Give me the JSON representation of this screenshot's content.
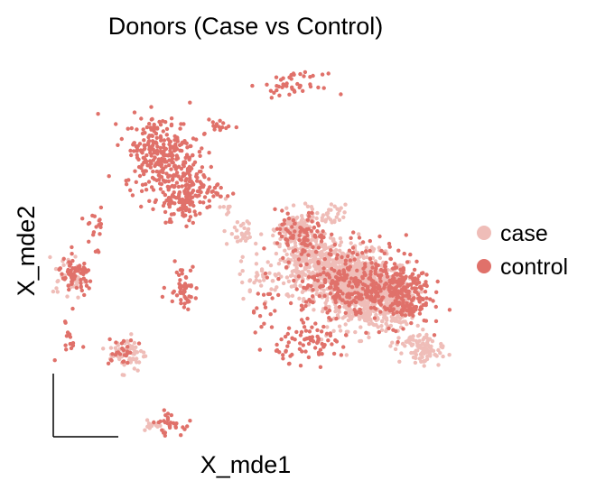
{
  "chart_data": {
    "type": "scatter",
    "title": "Donors (Case vs Control)",
    "xlabel": "X_mde1",
    "ylabel": "X_mde2",
    "ticks": "none",
    "grid": false,
    "legend_position": "right",
    "colors": {
      "case": "#efbdb8",
      "control": "#e0716a"
    },
    "series": [
      {
        "name": "case",
        "clusters": [
          {
            "center": [
              1.02,
              0.47
            ],
            "spread": [
              0.11,
              0.1
            ],
            "n": 520
          },
          {
            "center": [
              0.86,
              0.56
            ],
            "spread": [
              0.11,
              0.08
            ],
            "n": 420
          },
          {
            "center": [
              0.72,
              0.66
            ],
            "spread": [
              0.1,
              0.07
            ],
            "n": 260
          },
          {
            "center": [
              0.64,
              0.82
            ],
            "spread": [
              0.05,
              0.05
            ],
            "n": 130
          },
          {
            "center": [
              1.18,
              0.42
            ],
            "spread": [
              0.06,
              0.07
            ],
            "n": 120
          },
          {
            "center": [
              1.32,
              0.14
            ],
            "spread": [
              0.05,
              0.03
            ],
            "n": 60
          },
          {
            "center": [
              1.26,
              0.2
            ],
            "spread": [
              0.06,
              0.02
            ],
            "n": 40
          },
          {
            "center": [
              0.82,
              0.9
            ],
            "spread": [
              0.04,
              0.03
            ],
            "n": 30
          },
          {
            "center": [
              0.34,
              0.8
            ],
            "spread": [
              0.05,
              0.04
            ],
            "n": 30
          },
          {
            "center": [
              0.27,
              0.95
            ],
            "spread": [
              0.02,
              0.02
            ],
            "n": 8
          },
          {
            "center": [
              -0.6,
              0.56
            ],
            "spread": [
              0.04,
              0.06
            ],
            "n": 40
          },
          {
            "center": [
              -0.28,
              0.14
            ],
            "spread": [
              0.05,
              0.05
            ],
            "n": 60
          },
          {
            "center": [
              -0.14,
              -0.25
            ],
            "spread": [
              0.04,
              0.02
            ],
            "n": 15
          },
          {
            "center": [
              0.45,
              0.55
            ],
            "spread": [
              0.06,
              0.05
            ],
            "n": 30
          }
        ]
      },
      {
        "name": "control",
        "clusters": [
          {
            "center": [
              -0.1,
              1.25
            ],
            "spread": [
              0.1,
              0.1
            ],
            "n": 260
          },
          {
            "center": [
              0.04,
              1.05
            ],
            "spread": [
              0.09,
              0.07
            ],
            "n": 140
          },
          {
            "center": [
              1.2,
              0.47
            ],
            "spread": [
              0.08,
              0.09
            ],
            "n": 220
          },
          {
            "center": [
              1.0,
              0.56
            ],
            "spread": [
              0.13,
              0.1
            ],
            "n": 180
          },
          {
            "center": [
              0.85,
              0.5
            ],
            "spread": [
              0.13,
              0.09
            ],
            "n": 110
          },
          {
            "center": [
              0.66,
              0.78
            ],
            "spread": [
              0.07,
              0.07
            ],
            "n": 90
          },
          {
            "center": [
              0.73,
              0.2
            ],
            "spread": [
              0.1,
              0.05
            ],
            "n": 80
          },
          {
            "center": [
              -0.56,
              0.56
            ],
            "spread": [
              0.05,
              0.05
            ],
            "n": 70
          },
          {
            "center": [
              0.0,
              0.95
            ],
            "spread": [
              0.05,
              0.06
            ],
            "n": 50
          },
          {
            "center": [
              0.02,
              0.52
            ],
            "spread": [
              0.04,
              0.06
            ],
            "n": 50
          },
          {
            "center": [
              -0.06,
              -0.25
            ],
            "spread": [
              0.04,
              0.03
            ],
            "n": 30
          },
          {
            "center": [
              0.62,
              1.62
            ],
            "spread": [
              0.08,
              0.03
            ],
            "n": 45
          },
          {
            "center": [
              0.22,
              1.4
            ],
            "spread": [
              0.04,
              0.03
            ],
            "n": 15
          },
          {
            "center": [
              -0.31,
              0.14
            ],
            "spread": [
              0.04,
              0.04
            ],
            "n": 25
          },
          {
            "center": [
              -0.45,
              0.84
            ],
            "spread": [
              0.03,
              0.06
            ],
            "n": 20
          },
          {
            "center": [
              -0.6,
              0.22
            ],
            "spread": [
              0.03,
              0.06
            ],
            "n": 15
          },
          {
            "center": [
              0.45,
              0.4
            ],
            "spread": [
              0.05,
              0.1
            ],
            "n": 20
          }
        ]
      }
    ]
  }
}
